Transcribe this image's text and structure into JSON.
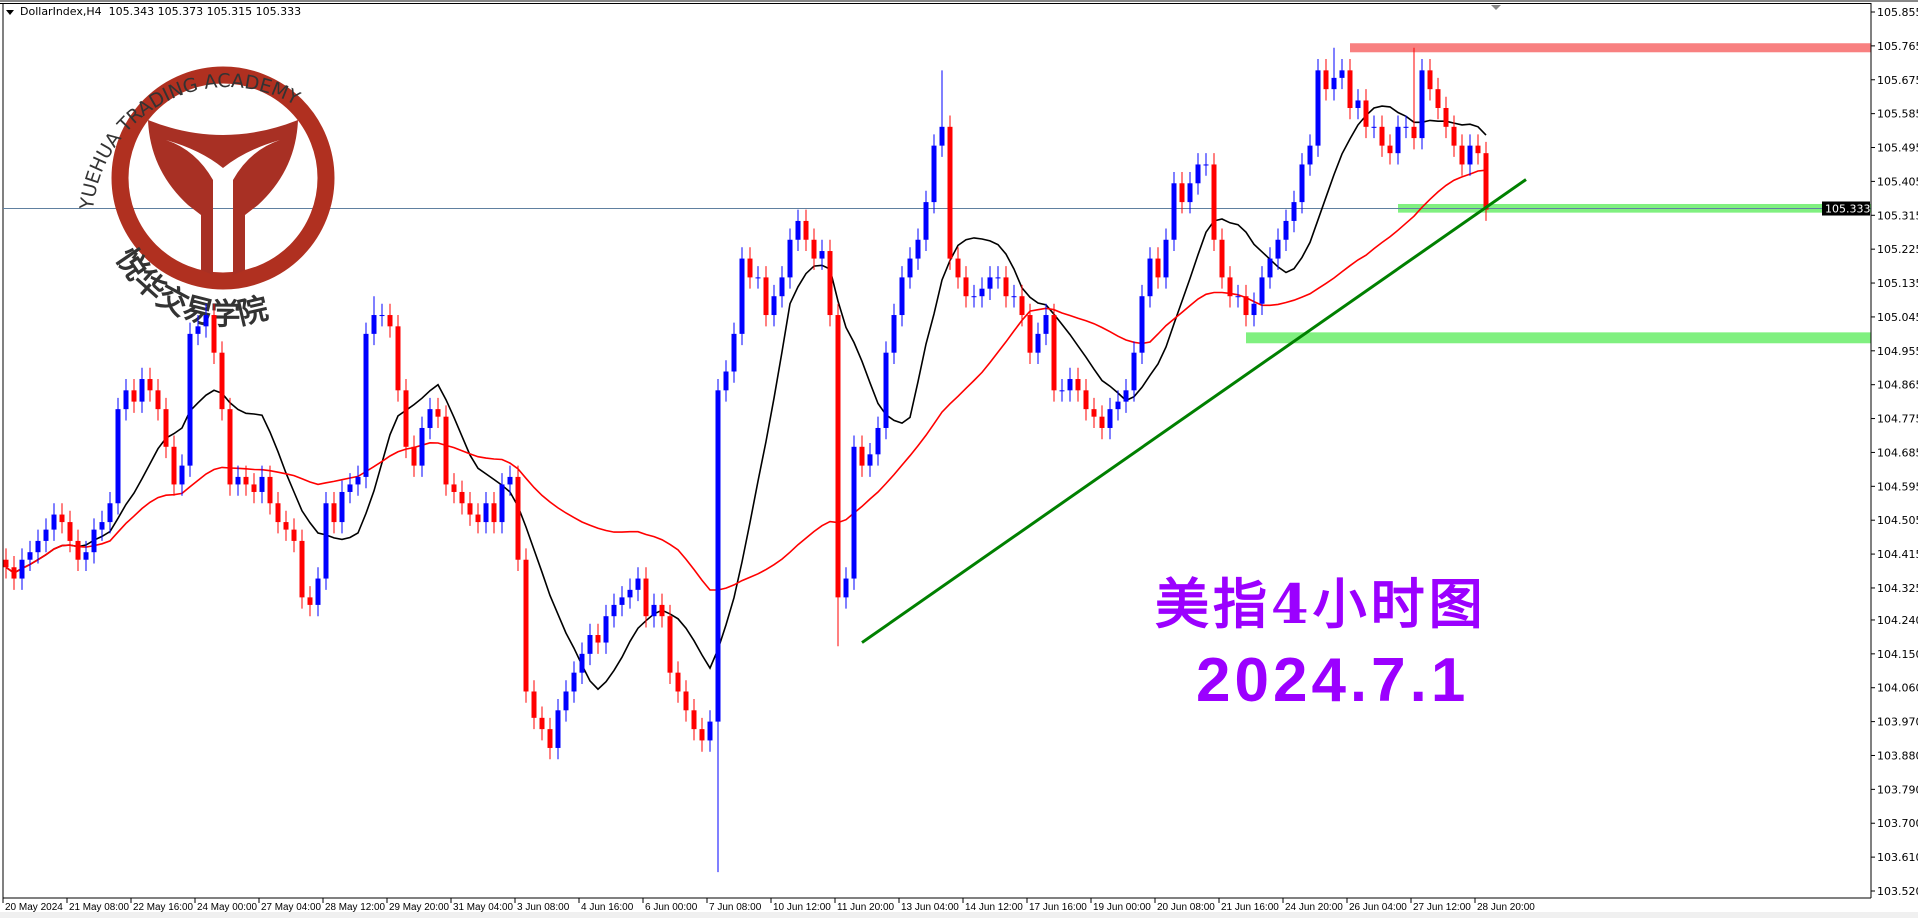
{
  "header": {
    "symbol": "DollarIndex,H4",
    "ohlc": "105.343 105.373 105.315 105.333"
  },
  "logo": {
    "text_en": "YUEHUA TRADING ACADEMY",
    "text_cn": "悦华交易学院"
  },
  "annotation": {
    "title": "美指4小时图",
    "date": "2024.7.1"
  },
  "colors": {
    "bull": "#0000ff",
    "bear": "#ff0000",
    "ma_fast": "#000000",
    "ma_slow": "#ff0000",
    "trendline": "#008000",
    "resistance_zone": "#f88080",
    "support_zone": "#80f080",
    "price_line": "#6080a0",
    "title": "#9b00ff",
    "logo": "#b03020"
  },
  "chart_data": {
    "type": "candlestick",
    "timeframe": "H4",
    "ylim": [
      103.52,
      105.855
    ],
    "y_ticks": [
      "105.855",
      "105.765",
      "105.675",
      "105.585",
      "105.495",
      "105.405",
      "105.315",
      "105.225",
      "105.135",
      "105.045",
      "104.955",
      "104.865",
      "104.775",
      "104.685",
      "104.595",
      "104.505",
      "104.415",
      "104.325",
      "104.240",
      "104.150",
      "104.060",
      "103.970",
      "103.880",
      "103.790",
      "103.700",
      "103.610",
      "103.520"
    ],
    "x_ticks": [
      "20 May 2024",
      "21 May 08:00",
      "22 May 16:00",
      "24 May 00:00",
      "27 May 04:00",
      "28 May 12:00",
      "29 May 20:00",
      "31 May 04:00",
      "3 Jun 08:00",
      "4 Jun 16:00",
      "6 Jun 00:00",
      "7 Jun 08:00",
      "10 Jun 12:00",
      "11 Jun 20:00",
      "13 Jun 04:00",
      "14 Jun 12:00",
      "17 Jun 16:00",
      "19 Jun 00:00",
      "20 Jun 08:00",
      "21 Jun 16:00",
      "24 Jun 20:00",
      "26 Jun 04:00",
      "27 Jun 12:00",
      "28 Jun 20:00"
    ],
    "current_price": "105.333",
    "closes": [
      104.38,
      104.35,
      104.4,
      104.42,
      104.45,
      104.48,
      104.52,
      104.5,
      104.45,
      104.4,
      104.42,
      104.48,
      104.5,
      104.55,
      104.8,
      104.85,
      104.82,
      104.88,
      104.85,
      104.8,
      104.7,
      104.6,
      104.65,
      105.0,
      105.02,
      105.05,
      104.95,
      104.8,
      104.6,
      104.62,
      104.6,
      104.58,
      104.62,
      104.55,
      104.5,
      104.48,
      104.45,
      104.3,
      104.28,
      104.35,
      104.55,
      104.5,
      104.58,
      104.6,
      104.62,
      105.0,
      105.05,
      105.05,
      105.02,
      104.85,
      104.7,
      104.65,
      104.75,
      104.8,
      104.78,
      104.6,
      104.58,
      104.55,
      104.52,
      104.5,
      104.55,
      104.5,
      104.6,
      104.62,
      104.4,
      104.05,
      103.98,
      103.95,
      103.9,
      104.0,
      104.05,
      104.1,
      104.15,
      104.2,
      104.18,
      104.25,
      104.28,
      104.3,
      104.32,
      104.35,
      104.25,
      104.28,
      104.25,
      104.1,
      104.05,
      104.0,
      103.95,
      103.92,
      103.97,
      104.85,
      104.9,
      105.0,
      105.2,
      105.15,
      105.15,
      105.05,
      105.1,
      105.15,
      105.25,
      105.3,
      105.25,
      105.2,
      105.22,
      105.05,
      104.3,
      104.35,
      104.7,
      104.65,
      104.68,
      104.75,
      104.95,
      105.05,
      105.15,
      105.2,
      105.25,
      105.35,
      105.5,
      105.55,
      105.2,
      105.15,
      105.1,
      105.1,
      105.12,
      105.15,
      105.15,
      105.1,
      105.1,
      105.05,
      104.95,
      105.0,
      105.05,
      104.85,
      104.85,
      104.88,
      104.85,
      104.8,
      104.78,
      104.75,
      104.8,
      104.82,
      104.85,
      104.95,
      105.1,
      105.2,
      105.15,
      105.25,
      105.4,
      105.35,
      105.4,
      105.45,
      105.45,
      105.25,
      105.15,
      105.1,
      105.1,
      105.05,
      105.08,
      105.15,
      105.2,
      105.25,
      105.3,
      105.35,
      105.45,
      105.5,
      105.7,
      105.65,
      105.68,
      105.7,
      105.6,
      105.62,
      105.55,
      105.55,
      105.5,
      105.48,
      105.55,
      105.55,
      105.52,
      105.7,
      105.65,
      105.6,
      105.55,
      105.5,
      105.45,
      105.5,
      105.48,
      105.33
    ],
    "notable_wicks": [
      {
        "bar": 89,
        "low": 103.57
      },
      {
        "bar": 104,
        "low": 104.17
      },
      {
        "bar": 117,
        "high": 105.7
      },
      {
        "bar": 166,
        "high": 105.76
      },
      {
        "bar": 176,
        "high": 105.76
      },
      {
        "bar": 46,
        "high": 105.1
      }
    ],
    "indicators": [
      {
        "type": "moving-average",
        "period": 10,
        "color": "#000000"
      },
      {
        "type": "moving-average",
        "period": 40,
        "color": "#ff0000"
      }
    ],
    "zones": [
      {
        "kind": "resistance",
        "from_bar": 168,
        "top": 105.772,
        "bottom": 105.748,
        "color": "#f88080"
      },
      {
        "kind": "support",
        "from_bar": 174,
        "top": 105.345,
        "bottom": 105.322,
        "color": "#80f080"
      },
      {
        "kind": "support",
        "from_bar": 155,
        "top": 105.004,
        "bottom": 104.975,
        "color": "#80f080"
      }
    ],
    "trendline": {
      "from": {
        "bar": 107,
        "price": 104.18
      },
      "to": {
        "bar": 190,
        "price": 105.41
      },
      "color": "#008000"
    }
  }
}
